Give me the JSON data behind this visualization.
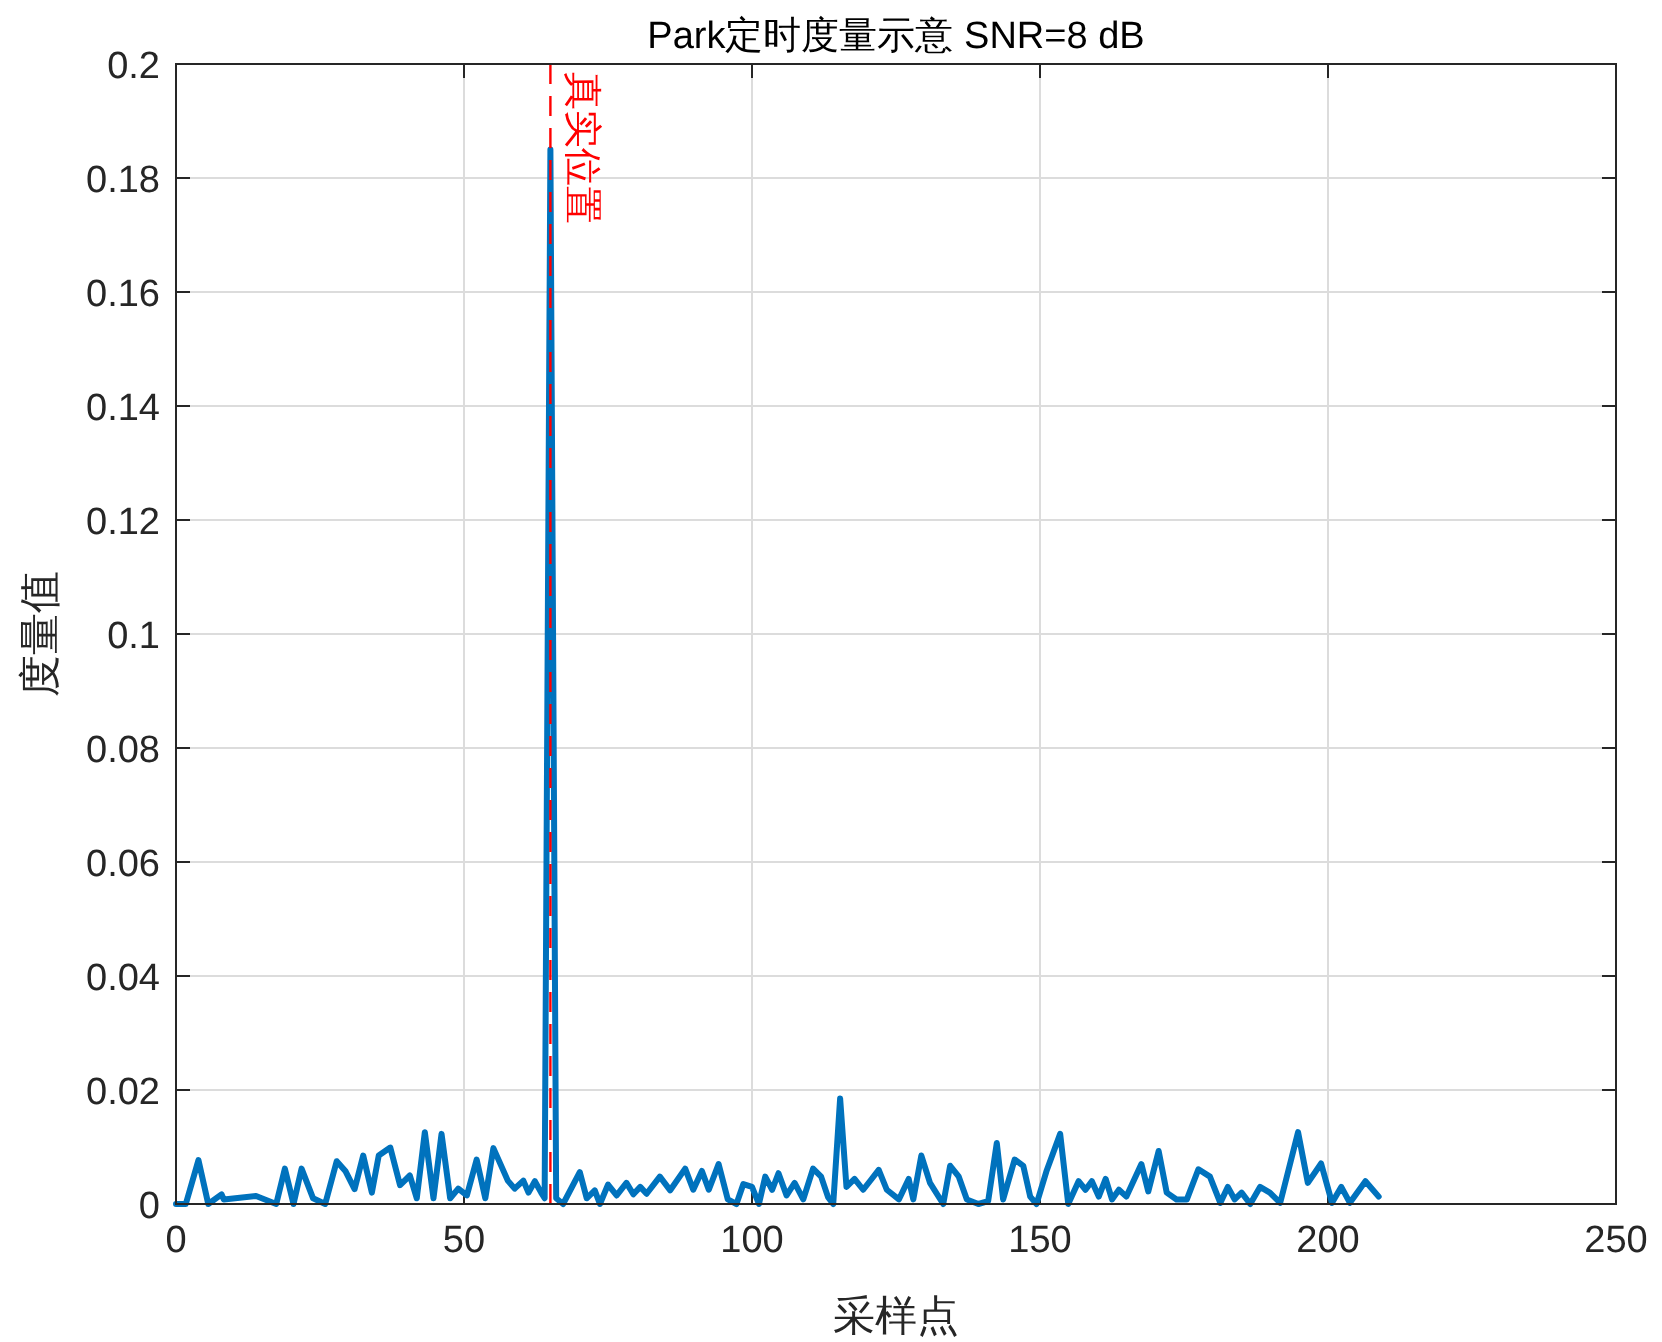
{
  "chart_data": {
    "type": "line",
    "title": "Park定时度量示意  SNR=8 dB",
    "xlabel": "采样点",
    "ylabel": "度量值",
    "xlim": [
      0,
      250
    ],
    "xticks": [
      0,
      50,
      100,
      150,
      200,
      250
    ],
    "ylim": [
      0,
      0.2
    ],
    "yticks": [
      0,
      0.02,
      0.04,
      0.06,
      0.08,
      0.1,
      0.12,
      0.14,
      0.16,
      0.18,
      0.2
    ],
    "grid": true,
    "line_style": "solid",
    "ref_lines": [
      {
        "axis": "x",
        "value": 65,
        "label": "真实位置",
        "color": "#ff0000",
        "line_style": "dashed"
      }
    ],
    "series": [
      {
        "color": "#0072bd",
        "x": [
          0,
          1.7,
          3.9,
          5.6,
          7.9,
          8.3,
          13.9,
          17.4,
          18.9,
          20.4,
          21.8,
          23.8,
          25.9,
          27.9,
          29.4,
          31,
          32.5,
          34,
          35.2,
          37.2,
          38.9,
          40.6,
          41.8,
          43.2,
          44.7,
          46.1,
          47.6,
          49,
          50.5,
          52.2,
          53.7,
          55.1,
          57.6,
          58.8,
          60.3,
          61.2,
          62.3,
          63.4,
          64,
          65,
          66,
          67.2,
          70.1,
          71.3,
          72.7,
          73.6,
          75,
          76.5,
          78.2,
          79.4,
          80.6,
          81.7,
          84,
          85.8,
          88.4,
          89.8,
          91.3,
          92.5,
          94.2,
          95.8,
          97.3,
          98.5,
          100,
          101.2,
          102.3,
          103.5,
          104.6,
          106,
          107.4,
          108.9,
          110.6,
          112,
          113.2,
          114.1,
          115.3,
          116.4,
          117.8,
          119.3,
          120.7,
          122,
          123.4,
          125.5,
          127.2,
          128,
          129.4,
          130.9,
          133.2,
          134.4,
          135.9,
          137.3,
          139.3,
          141,
          142.5,
          143.6,
          145.6,
          147.1,
          148.3,
          149.4,
          151.1,
          153.5,
          154.9,
          156.7,
          157.9,
          159,
          160.2,
          161.4,
          162.5,
          163.7,
          165,
          167.6,
          168.8,
          170.6,
          172,
          173.7,
          175.5,
          177.5,
          179.5,
          181.3,
          182.6,
          183.8,
          185,
          186.5,
          188.2,
          189.9,
          191.7,
          194.8,
          196.5,
          198.8,
          200.7,
          202.3,
          203.8,
          206.5,
          208.8
        ],
        "values": [
          0,
          0,
          0.0077,
          0,
          0.0017,
          0.0008,
          0.0014,
          0,
          0.0062,
          0,
          0.0062,
          0.001,
          0,
          0.0075,
          0.0058,
          0.0026,
          0.0085,
          0.002,
          0.0085,
          0.0099,
          0.0033,
          0.005,
          0.001,
          0.0126,
          0.001,
          0.0123,
          0.001,
          0.0027,
          0.0015,
          0.0078,
          0.001,
          0.0098,
          0.0041,
          0.0027,
          0.0041,
          0.002,
          0.004,
          0.002,
          0.001,
          0.185,
          0.001,
          0,
          0.0056,
          0.001,
          0.0024,
          0,
          0.0034,
          0.0015,
          0.0037,
          0.0017,
          0.003,
          0.0018,
          0.0048,
          0.0024,
          0.0062,
          0.0025,
          0.0058,
          0.0025,
          0.007,
          0.0008,
          0,
          0.0035,
          0.003,
          0,
          0.0048,
          0.0025,
          0.0054,
          0.0015,
          0.0037,
          0.0008,
          0.0062,
          0.0048,
          0.0012,
          0,
          0.0185,
          0.003,
          0.0044,
          0.0025,
          0.0043,
          0.006,
          0.0025,
          0.0008,
          0.0044,
          0.0008,
          0.0085,
          0.0037,
          0,
          0.0067,
          0.0048,
          0.0008,
          0,
          0.0005,
          0.0107,
          0.0008,
          0.0078,
          0.0067,
          0.0013,
          0,
          0.0057,
          0.0123,
          0,
          0.004,
          0.0025,
          0.004,
          0.0013,
          0.0044,
          0.0008,
          0.0025,
          0.0013,
          0.007,
          0.0022,
          0.0093,
          0.002,
          0.0008,
          0.0008,
          0.0061,
          0.0048,
          0.0002,
          0.003,
          0.0008,
          0.002,
          0,
          0.003,
          0.002,
          0.0002,
          0.0126,
          0.0037,
          0.0071,
          0.0002,
          0.003,
          0.0002,
          0.004,
          0.0013
        ]
      }
    ]
  }
}
